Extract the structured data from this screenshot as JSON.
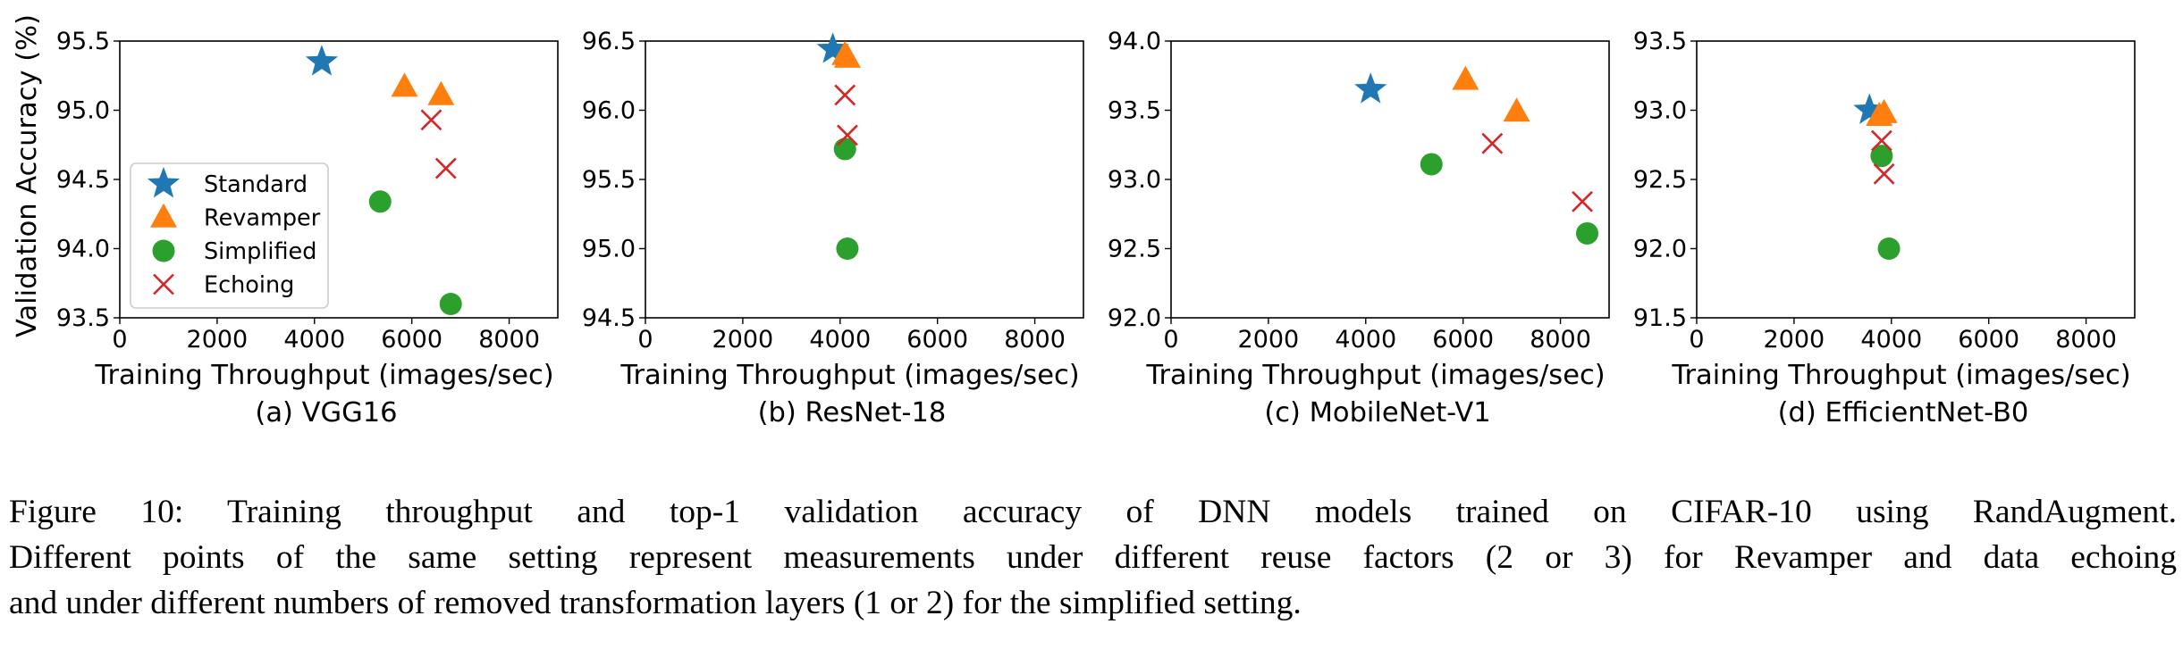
{
  "figure": {
    "caption_lines": [
      "Figure 10: Training throughput and top-1 validation accuracy of DNN models trained on CIFAR-10 using RandAugment.",
      "Different points of the same setting represent measurements under different reuse factors (2 or 3) for Revamper and data echoing",
      "and under different numbers of removed transformation layers (1 or 2) for the simplified setting."
    ]
  },
  "legend": {
    "placement": "lower-left of panel (a)",
    "entries": [
      {
        "name": "Standard",
        "marker": "star",
        "color": "#1f77b4"
      },
      {
        "name": "Revamper",
        "marker": "triangle",
        "color": "#ff7f0e"
      },
      {
        "name": "Simplified",
        "marker": "circle",
        "color": "#2ca02c"
      },
      {
        "name": "Echoing",
        "marker": "x",
        "color": "#d62728"
      }
    ]
  },
  "chart_data": [
    {
      "type": "scatter",
      "subtitle": "(a) VGG16",
      "xlabel": "Training Throughput (images/sec)",
      "ylabel": "Validation Accuracy (%)",
      "xlim": [
        0,
        9000
      ],
      "ylim": [
        93.5,
        95.5
      ],
      "xticks": [
        "0",
        "2000",
        "4000",
        "6000",
        "8000"
      ],
      "yticks": [
        "93.5",
        "94.0",
        "94.5",
        "95.0",
        "95.5"
      ],
      "series": [
        {
          "name": "Standard",
          "points": [
            [
              4150,
              95.35
            ]
          ]
        },
        {
          "name": "Revamper",
          "points": [
            [
              5850,
              95.17
            ],
            [
              6600,
              95.11
            ]
          ]
        },
        {
          "name": "Simplified",
          "points": [
            [
              5350,
              94.34
            ],
            [
              6800,
              93.6
            ]
          ]
        },
        {
          "name": "Echoing",
          "points": [
            [
              6400,
              94.93
            ],
            [
              6700,
              94.58
            ]
          ]
        }
      ]
    },
    {
      "type": "scatter",
      "subtitle": "(b) ResNet-18",
      "xlabel": "Training Throughput (images/sec)",
      "ylabel": "",
      "xlim": [
        0,
        9000
      ],
      "ylim": [
        94.5,
        96.5
      ],
      "xticks": [
        "0",
        "2000",
        "4000",
        "6000",
        "8000"
      ],
      "yticks": [
        "94.5",
        "95.0",
        "95.5",
        "96.0",
        "96.5"
      ],
      "series": [
        {
          "name": "Standard",
          "points": [
            [
              3850,
              96.44
            ]
          ]
        },
        {
          "name": "Revamper",
          "points": [
            [
              4100,
              96.4
            ],
            [
              4150,
              96.38
            ]
          ]
        },
        {
          "name": "Simplified",
          "points": [
            [
              4100,
              95.72
            ],
            [
              4150,
              95.0
            ]
          ]
        },
        {
          "name": "Echoing",
          "points": [
            [
              4100,
              96.11
            ],
            [
              4150,
              95.82
            ]
          ]
        }
      ]
    },
    {
      "type": "scatter",
      "subtitle": "(c) MobileNet-V1",
      "xlabel": "Training Throughput (images/sec)",
      "ylabel": "",
      "xlim": [
        0,
        9000
      ],
      "ylim": [
        92.0,
        94.0
      ],
      "xticks": [
        "0",
        "2000",
        "4000",
        "6000",
        "8000"
      ],
      "yticks": [
        "92.0",
        "92.5",
        "93.0",
        "93.5",
        "94.0"
      ],
      "series": [
        {
          "name": "Standard",
          "points": [
            [
              4100,
              93.65
            ]
          ]
        },
        {
          "name": "Revamper",
          "points": [
            [
              6050,
              93.72
            ],
            [
              7100,
              93.49
            ]
          ]
        },
        {
          "name": "Simplified",
          "points": [
            [
              5350,
              93.11
            ],
            [
              8550,
              92.61
            ]
          ]
        },
        {
          "name": "Echoing",
          "points": [
            [
              6600,
              93.26
            ],
            [
              8450,
              92.84
            ]
          ]
        }
      ]
    },
    {
      "type": "scatter",
      "subtitle": "(d) EfficientNet-B0",
      "xlabel": "Training Throughput (images/sec)",
      "ylabel": "",
      "xlim": [
        0,
        9000
      ],
      "ylim": [
        91.5,
        93.5
      ],
      "xticks": [
        "0",
        "2000",
        "4000",
        "6000",
        "8000"
      ],
      "yticks": [
        "91.5",
        "92.0",
        "92.5",
        "93.0",
        "93.5"
      ],
      "series": [
        {
          "name": "Standard",
          "points": [
            [
              3550,
              93.0
            ]
          ]
        },
        {
          "name": "Revamper",
          "points": [
            [
              3750,
              92.96
            ],
            [
              3850,
              92.98
            ]
          ]
        },
        {
          "name": "Simplified",
          "points": [
            [
              3800,
              92.67
            ],
            [
              3950,
              92.0
            ]
          ]
        },
        {
          "name": "Echoing",
          "points": [
            [
              3800,
              92.78
            ],
            [
              3850,
              92.54
            ]
          ]
        }
      ]
    }
  ]
}
